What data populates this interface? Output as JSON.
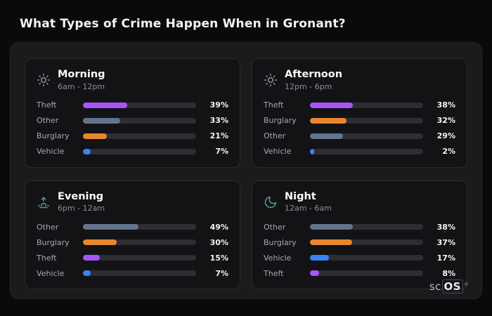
{
  "page_title": "What Types of Crime Happen When in Gronant?",
  "brand": {
    "logo_sc": "sc",
    "logo_os": "OS",
    "registered_mark": "®"
  },
  "colors": {
    "bars": {
      "Theft": "#a855f7",
      "Other": "#64748b",
      "Burglary": "#e8862d",
      "Vehicle": "#3b82f6"
    },
    "icons": {
      "sun-icon": "#84979b",
      "sunset-icon": "#4fa08b",
      "moon-icon": "#4fa08b"
    },
    "track": "#2d2d32"
  },
  "chart_data": [
    {
      "type": "bar",
      "title": "Morning",
      "subtitle": "6am - 12pm",
      "icon": "sun-icon",
      "categories": [
        "Theft",
        "Other",
        "Burglary",
        "Vehicle"
      ],
      "values": [
        39,
        33,
        21,
        7
      ],
      "value_suffix": "%",
      "xlim": [
        0,
        100
      ],
      "legend": "none",
      "grid": false
    },
    {
      "type": "bar",
      "title": "Afternoon",
      "subtitle": "12pm - 6pm",
      "icon": "sun-icon",
      "categories": [
        "Theft",
        "Burglary",
        "Other",
        "Vehicle"
      ],
      "values": [
        38,
        32,
        29,
        2
      ],
      "value_suffix": "%",
      "xlim": [
        0,
        100
      ],
      "legend": "none",
      "grid": false
    },
    {
      "type": "bar",
      "title": "Evening",
      "subtitle": "6pm - 12am",
      "icon": "sunset-icon",
      "categories": [
        "Other",
        "Burglary",
        "Theft",
        "Vehicle"
      ],
      "values": [
        49,
        30,
        15,
        7
      ],
      "value_suffix": "%",
      "xlim": [
        0,
        100
      ],
      "legend": "none",
      "grid": false
    },
    {
      "type": "bar",
      "title": "Night",
      "subtitle": "12am - 6am",
      "icon": "moon-icon",
      "categories": [
        "Other",
        "Burglary",
        "Vehicle",
        "Theft"
      ],
      "values": [
        38,
        37,
        17,
        8
      ],
      "value_suffix": "%",
      "xlim": [
        0,
        100
      ],
      "legend": "none",
      "grid": false
    }
  ]
}
